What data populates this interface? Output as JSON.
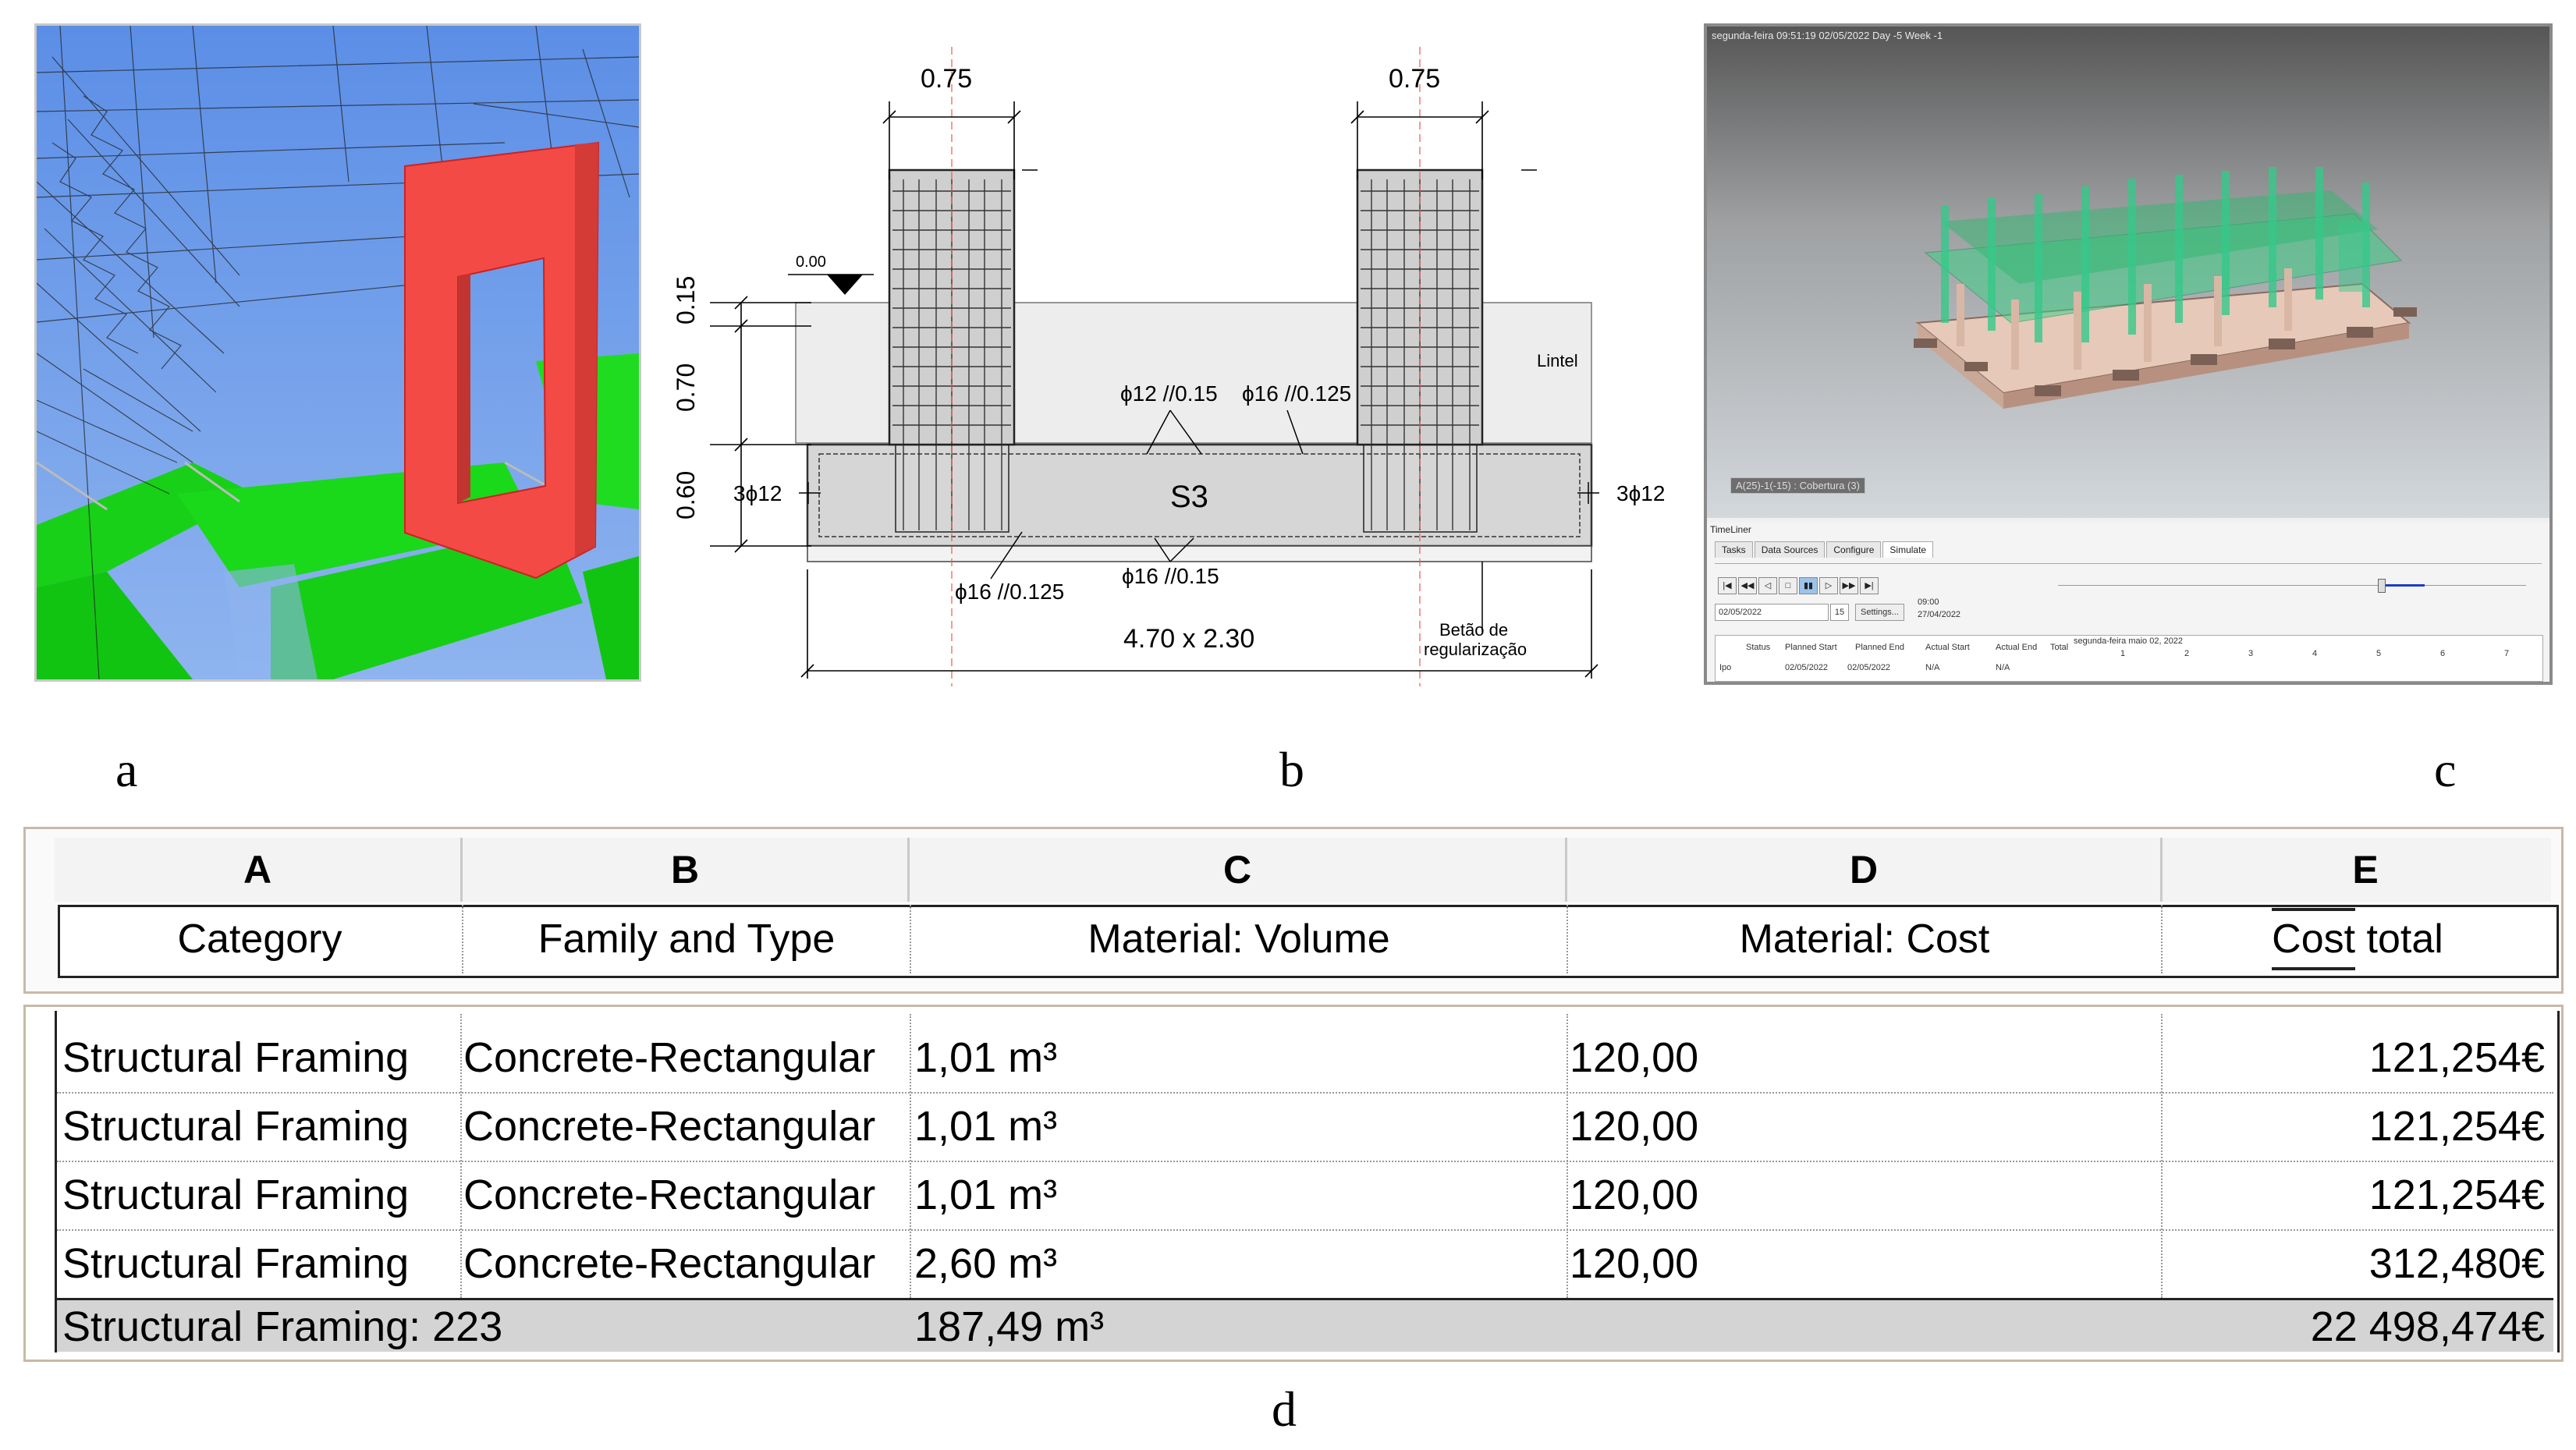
{
  "labels": {
    "a": "a",
    "b": "b",
    "c": "c",
    "d": "d"
  },
  "drawing": {
    "col_width_left": "0.75",
    "col_width_right": "0.75",
    "level": "0.00",
    "dim_015": "0.15",
    "dim_070": "0.70",
    "dim_060": "0.60",
    "lintel": "Lintel",
    "rebar_top_1": "ϕ12 //0.15",
    "rebar_top_2": "ϕ16 //0.125",
    "rebar_side_left": "3ϕ12",
    "rebar_side_right": "3ϕ12",
    "footing": "S3",
    "rebar_bottom_1": "ϕ16 //0.125",
    "rebar_bottom_2": "ϕ16 //0.15",
    "size": "4.70 x 2.30",
    "blinding_1": "Betão de",
    "blinding_2": "regularização"
  },
  "timeliner": {
    "status_bar": "segunda-feira 09:51:19 02/05/2022 Day -5 Week -1",
    "view_tag": "A(25)-1(-15) : Cobertura (3)",
    "panel_title": "TimeLiner",
    "tabs": [
      "Tasks",
      "Data Sources",
      "Configure",
      "Simulate"
    ],
    "date_field": "02/05/2022",
    "date_btn": "15",
    "settings_btn": "Settings...",
    "time": "09:00",
    "time_date": "27/04/2022",
    "columns": [
      "Status",
      "Planned Start",
      "Planned End",
      "Actual Start",
      "Actual End",
      "Total"
    ],
    "gantt_header": "segunda-feira maio 02, 2022",
    "gantt_days": [
      "1",
      "2",
      "3",
      "4",
      "5",
      "6",
      "7"
    ],
    "row": {
      "name": "Ipo",
      "planned_start": "02/05/2022",
      "planned_end": "02/05/2022",
      "actual_start": "N/A",
      "actual_end": "N/A"
    }
  },
  "schedule": {
    "letters": [
      "A",
      "B",
      "C",
      "D",
      "E"
    ],
    "headers": [
      "Category",
      "Family and Type",
      "Material: Volume",
      "Material: Cost",
      "Cost ",
      " total"
    ],
    "rows": [
      {
        "category": "Structural Framing",
        "family": "Concrete-Rectangular",
        "volume": "1,01 m³",
        "cost": "120,00",
        "total": "121,254€"
      },
      {
        "category": "Structural Framing",
        "family": "Concrete-Rectangular",
        "volume": "1,01 m³",
        "cost": "120,00",
        "total": "121,254€"
      },
      {
        "category": "Structural Framing",
        "family": "Concrete-Rectangular",
        "volume": "1,01 m³",
        "cost": "120,00",
        "total": "121,254€"
      },
      {
        "category": "Structural Framing",
        "family": "Concrete-Rectangular",
        "volume": "2,60 m³",
        "cost": "120,00",
        "total": "312,480€"
      }
    ],
    "summary": {
      "label": "Structural Framing: 223",
      "volume": "187,49 m³",
      "total": "22 498,474€"
    }
  }
}
